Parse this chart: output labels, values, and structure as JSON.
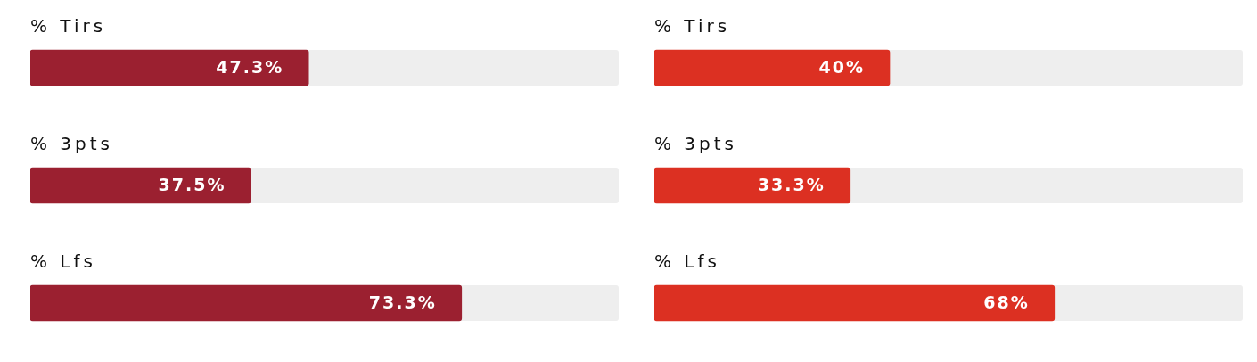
{
  "chart_data": [
    {
      "type": "bar",
      "orientation": "horizontal",
      "categories": [
        "% Tirs",
        "% 3pts",
        "% Lfs"
      ],
      "values": [
        47.3,
        37.5,
        73.3
      ],
      "value_labels": [
        "47.3%",
        "37.5%",
        "73.3%"
      ],
      "color": "#9b2030",
      "xlim": [
        0,
        100
      ],
      "tick_labels": false
    },
    {
      "type": "bar",
      "orientation": "horizontal",
      "categories": [
        "% Tirs",
        "% 3pts",
        "% Lfs"
      ],
      "values": [
        40,
        33.3,
        68
      ],
      "value_labels": [
        "40%",
        "33.3%",
        "68%"
      ],
      "color": "#dc3022",
      "xlim": [
        0,
        100
      ],
      "tick_labels": false
    }
  ]
}
